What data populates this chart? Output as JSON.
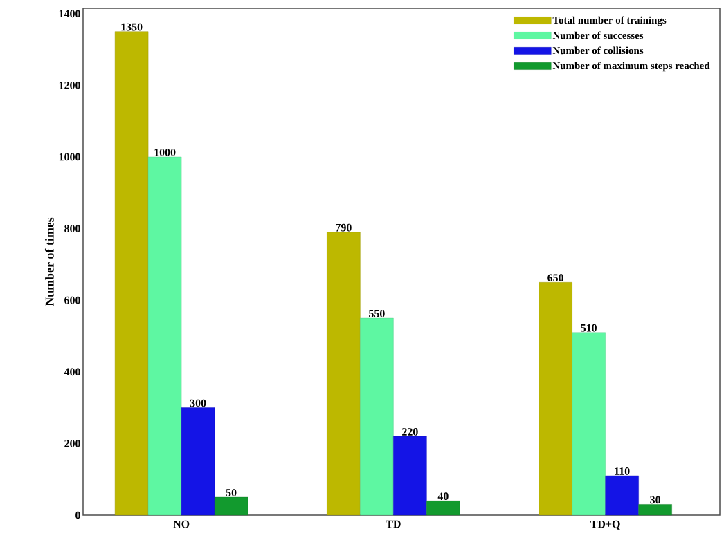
{
  "chart_data": {
    "type": "bar",
    "ylabel": "Number of times",
    "categories": [
      "NO",
      "TD",
      "TD+Q"
    ],
    "series": [
      {
        "name": "Total number of trainings",
        "color": "#bdb800",
        "values": [
          1350,
          790,
          650
        ]
      },
      {
        "name": "Number of successes",
        "color": "#5ef7a2",
        "values": [
          1000,
          550,
          510
        ]
      },
      {
        "name": "Number of collisions",
        "color": "#1414e6",
        "values": [
          300,
          220,
          110
        ]
      },
      {
        "name": "Number of maximum steps reached",
        "color": "#129a2e",
        "values": [
          50,
          40,
          30
        ]
      }
    ],
    "ylim": [
      0,
      1415
    ],
    "yticks": [
      0,
      200,
      400,
      600,
      800,
      1000,
      1200,
      1400
    ],
    "data_labels": true,
    "legend": "top right",
    "grid": false
  }
}
